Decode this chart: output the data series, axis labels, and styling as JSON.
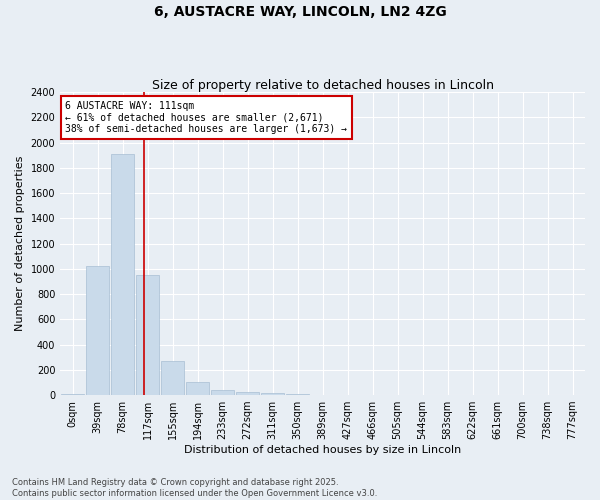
{
  "title": "6, AUSTACRE WAY, LINCOLN, LN2 4ZG",
  "subtitle": "Size of property relative to detached houses in Lincoln",
  "xlabel": "Distribution of detached houses by size in Lincoln",
  "ylabel": "Number of detached properties",
  "bar_color": "#c9daea",
  "bar_edge_color": "#a8bfd4",
  "bin_labels": [
    "0sqm",
    "39sqm",
    "78sqm",
    "117sqm",
    "155sqm",
    "194sqm",
    "233sqm",
    "272sqm",
    "311sqm",
    "350sqm",
    "389sqm",
    "427sqm",
    "466sqm",
    "505sqm",
    "544sqm",
    "583sqm",
    "622sqm",
    "661sqm",
    "700sqm",
    "738sqm",
    "777sqm"
  ],
  "bar_values": [
    5,
    1020,
    1910,
    950,
    270,
    100,
    40,
    25,
    15,
    5,
    2,
    1,
    0,
    0,
    0,
    0,
    0,
    0,
    0,
    0,
    0
  ],
  "ylim": [
    0,
    2400
  ],
  "yticks": [
    0,
    200,
    400,
    600,
    800,
    1000,
    1200,
    1400,
    1600,
    1800,
    2000,
    2200,
    2400
  ],
  "property_line_x": 2.85,
  "annotation_text": "6 AUSTACRE WAY: 111sqm\n← 61% of detached houses are smaller (2,671)\n38% of semi-detached houses are larger (1,673) →",
  "annotation_box_facecolor": "#ffffff",
  "annotation_box_edgecolor": "#cc0000",
  "vline_color": "#cc0000",
  "background_color": "#e8eef4",
  "grid_color": "#ffffff",
  "footer_line1": "Contains HM Land Registry data © Crown copyright and database right 2025.",
  "footer_line2": "Contains public sector information licensed under the Open Government Licence v3.0.",
  "title_fontsize": 10,
  "subtitle_fontsize": 9,
  "ylabel_fontsize": 8,
  "xlabel_fontsize": 8,
  "tick_fontsize": 7,
  "annotation_fontsize": 7,
  "footer_fontsize": 6
}
